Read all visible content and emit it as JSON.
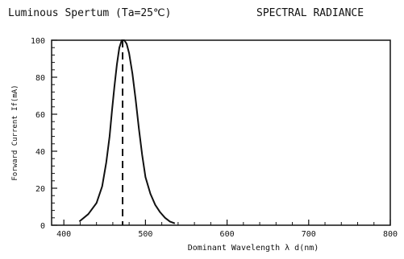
{
  "chart_data": {
    "type": "line",
    "title": "Luminous Spertum (Ta=25℃)",
    "subtitle": "SPECTRAL RADIANCE",
    "xlabel": "Dominant Wavelength  λ d(nm)",
    "ylabel": "Forward Current If(mA)",
    "xlim": [
      385,
      800
    ],
    "ylim": [
      0,
      100
    ],
    "xticks": [
      400,
      500,
      600,
      700,
      800
    ],
    "yticks": [
      0,
      20,
      40,
      60,
      80,
      100
    ],
    "grid": false,
    "peak_wavelength": 472,
    "series": [
      {
        "x": [
          419,
          430,
          440,
          447,
          452,
          456,
          459,
          462,
          465,
          468,
          471,
          474,
          477,
          480,
          484,
          488,
          492,
          496,
          500,
          506,
          512,
          518,
          524,
          530,
          536
        ],
        "y": [
          2,
          6,
          12,
          21,
          34,
          48,
          62,
          75,
          87,
          96,
          100,
          100,
          98,
          93,
          82,
          68,
          52,
          38,
          26,
          17,
          11,
          7,
          4,
          2,
          1
        ]
      }
    ]
  }
}
